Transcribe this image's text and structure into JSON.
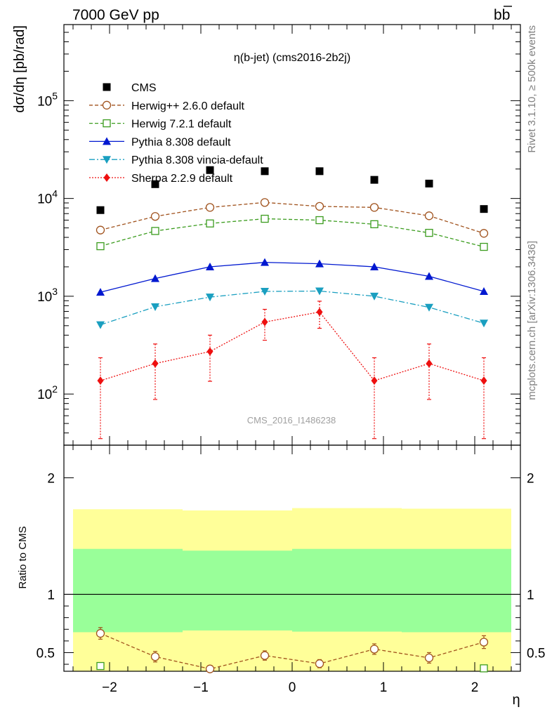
{
  "header": {
    "left": "7000 GeV pp",
    "right_base": "b",
    "right_bar": "b"
  },
  "side_labels": {
    "top": "Rivet 3.1.10, ≥ 500k events",
    "bottom": "mcplots.cern.ch [arXiv:1306.3436]"
  },
  "chart_data": {
    "type": "scatter",
    "title": "η(b-jet) (cms2016-2b2j)",
    "watermark": "CMS_2016_I1486238",
    "xlabel": "η",
    "ylabel_main": "dσ/dη [pb/rad]",
    "ylabel_ratio": "Ratio to CMS",
    "xlim": [
      -2.5,
      2.5
    ],
    "ylim_main": [
      30,
      600000
    ],
    "yscale_main": "log",
    "ylim_ratio": [
      0.34,
      2.28
    ],
    "x_ticks": [
      "−2",
      "−1",
      "0",
      "1",
      "2"
    ],
    "main_y_ticks": [
      {
        "value": 100,
        "base": "10",
        "exp": "2"
      },
      {
        "value": 1000,
        "base": "10",
        "exp": "3"
      },
      {
        "value": 10000,
        "base": "10",
        "exp": "4"
      },
      {
        "value": 100000,
        "base": "10",
        "exp": "5"
      }
    ],
    "ratio_y_ticks": [
      "0.5",
      "1",
      "2"
    ],
    "x": [
      -2.1,
      -1.5,
      -0.9,
      -0.3,
      0.3,
      0.9,
      1.5,
      2.1
    ],
    "bin_edges": [
      -2.4,
      -1.2,
      0.0,
      1.2,
      2.4
    ],
    "series": [
      {
        "name": "CMS",
        "color": "#000000",
        "marker": "square-filled",
        "values": [
          7600,
          14000,
          19500,
          19000,
          19000,
          15500,
          14200,
          7800
        ]
      },
      {
        "name": "Herwig++ 2.6.0 default",
        "color": "#a0521d",
        "marker": "circle-open",
        "dash": "5,3",
        "values": [
          4750,
          6550,
          8100,
          9100,
          8300,
          8100,
          6650,
          4400
        ],
        "ratio": [
          0.665,
          0.465,
          0.36,
          0.475,
          0.405,
          0.53,
          0.455,
          0.59
        ],
        "ratio_err": [
          0.05,
          0.045,
          0.03,
          0.04,
          0.035,
          0.045,
          0.045,
          0.055
        ]
      },
      {
        "name": "Herwig 7.2.1 default",
        "color": "#3b9c1e",
        "marker": "square-open",
        "dash": "5,3",
        "values": [
          3250,
          4650,
          5550,
          6200,
          6000,
          5450,
          4450,
          3200
        ],
        "ratio": [
          0.385,
          null,
          null,
          null,
          null,
          null,
          null,
          0.365
        ]
      },
      {
        "name": "Pythia 8.308 default",
        "color": "#0018d0",
        "marker": "triangle-up",
        "values": [
          1100,
          1520,
          2000,
          2220,
          2150,
          2000,
          1600,
          1120
        ]
      },
      {
        "name": "Pythia 8.308 vincia-default",
        "color": "#1a9fc0",
        "marker": "triangle-down",
        "dash": "8,3,2,3",
        "values": [
          510,
          780,
          980,
          1120,
          1130,
          1000,
          770,
          530
        ]
      },
      {
        "name": "Sherpa 2.2.9 default",
        "color": "#ee1010",
        "marker": "diamond",
        "dash": "2,2",
        "values": [
          137,
          205,
          272,
          545,
          690,
          137,
          205,
          137
        ],
        "err_low": [
          35,
          88,
          135,
          355,
          470,
          35,
          88,
          35
        ],
        "err_high": [
          235,
          325,
          400,
          735,
          890,
          235,
          325,
          235
        ]
      }
    ],
    "ratio_bands": {
      "inner_color": "#99ff99",
      "outer_color": "#ffff99",
      "inner_low": [
        0.675,
        0.69,
        0.68,
        0.675
      ],
      "inner_high": [
        1.39,
        1.375,
        1.39,
        1.39
      ],
      "outer_low": [
        0.33,
        0.33,
        0.33,
        0.33
      ],
      "outer_high": [
        1.73,
        1.72,
        1.74,
        1.735
      ]
    }
  }
}
